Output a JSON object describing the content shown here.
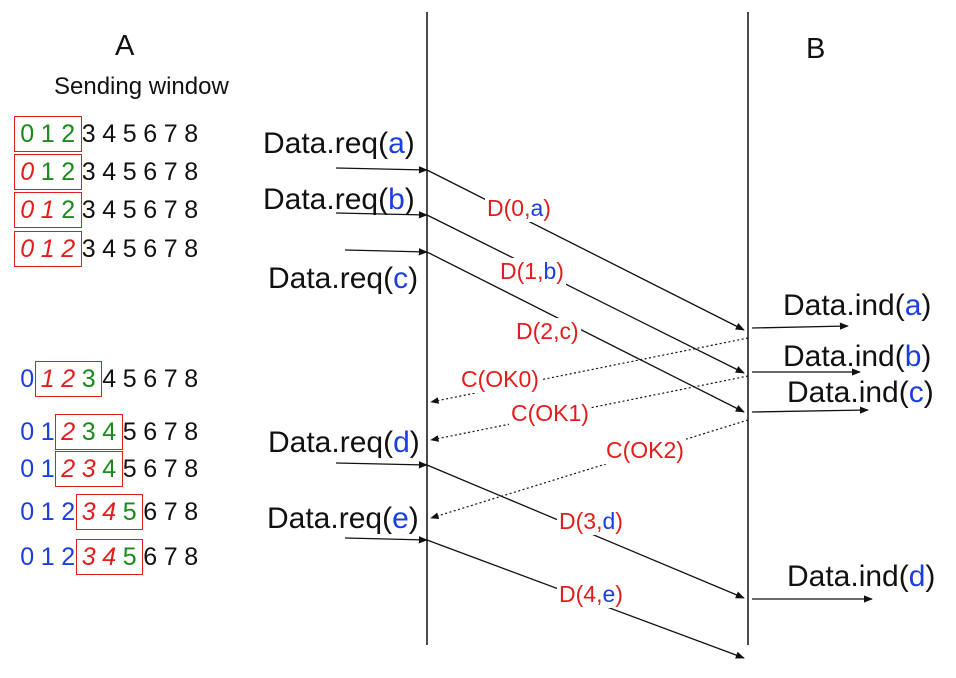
{
  "nodes": {
    "a_label": "A",
    "b_label": "B",
    "sending_window": "Sending window"
  },
  "colors": {
    "black": "#111111",
    "blue": "#1a3fe0",
    "green": "#1a8a1a",
    "red": "#e31c1c"
  },
  "windows": [
    {
      "digits": [
        "0",
        "1",
        "2",
        "3",
        "4",
        "5",
        "6",
        "7",
        "8"
      ],
      "styles": [
        "g",
        "g",
        "g",
        "k",
        "k",
        "k",
        "k",
        "k",
        "k"
      ],
      "box": [
        0,
        2
      ]
    },
    {
      "digits": [
        "0",
        "1",
        "2",
        "3",
        "4",
        "5",
        "6",
        "7",
        "8"
      ],
      "styles": [
        "ri",
        "g",
        "g",
        "k",
        "k",
        "k",
        "k",
        "k",
        "k"
      ],
      "box": [
        0,
        2
      ]
    },
    {
      "digits": [
        "0",
        "1",
        "2",
        "3",
        "4",
        "5",
        "6",
        "7",
        "8"
      ],
      "styles": [
        "ri",
        "ri",
        "g",
        "k",
        "k",
        "k",
        "k",
        "k",
        "k"
      ],
      "box": [
        0,
        2
      ]
    },
    {
      "digits": [
        "0",
        "1",
        "2",
        "3",
        "4",
        "5",
        "6",
        "7",
        "8"
      ],
      "styles": [
        "ri",
        "ri",
        "ri",
        "k",
        "k",
        "k",
        "k",
        "k",
        "k"
      ],
      "box": [
        0,
        2
      ]
    },
    {
      "digits": [
        "0",
        "1",
        "2",
        "3",
        "4",
        "5",
        "6",
        "7",
        "8"
      ],
      "styles": [
        "b",
        "ri",
        "ri",
        "g",
        "k",
        "k",
        "k",
        "k",
        "k"
      ],
      "box": [
        1,
        3
      ]
    },
    {
      "digits": [
        "0",
        "1",
        "2",
        "3",
        "4",
        "5",
        "6",
        "7",
        "8"
      ],
      "styles": [
        "b",
        "b",
        "ri",
        "g",
        "g",
        "k",
        "k",
        "k",
        "k"
      ],
      "box": [
        2,
        4
      ]
    },
    {
      "digits": [
        "0",
        "1",
        "2",
        "3",
        "4",
        "5",
        "6",
        "7",
        "8"
      ],
      "styles": [
        "b",
        "b",
        "ri",
        "ri",
        "g",
        "k",
        "k",
        "k",
        "k"
      ],
      "box": [
        2,
        4
      ]
    },
    {
      "digits": [
        "0",
        "1",
        "2",
        "3",
        "4",
        "5",
        "6",
        "7",
        "8"
      ],
      "styles": [
        "b",
        "b",
        "b",
        "ri",
        "ri",
        "g",
        "k",
        "k",
        "k"
      ],
      "box": [
        3,
        5
      ]
    },
    {
      "digits": [
        "0",
        "1",
        "2",
        "3",
        "4",
        "5",
        "6",
        "7",
        "8"
      ],
      "styles": [
        "b",
        "b",
        "b",
        "ri",
        "ri",
        "g",
        "k",
        "k",
        "k"
      ],
      "box": [
        3,
        5
      ]
    }
  ],
  "requests": [
    {
      "prefix": "Data.req(",
      "arg": "a",
      "suffix": ")"
    },
    {
      "prefix": "Data.req(",
      "arg": "b",
      "suffix": ")"
    },
    {
      "prefix": "Data.req(",
      "arg": "c",
      "suffix": ")"
    },
    {
      "prefix": "Data.req(",
      "arg": "d",
      "suffix": ")"
    },
    {
      "prefix": "Data.req(",
      "arg": "e",
      "suffix": ")"
    }
  ],
  "indications": [
    {
      "prefix": "Data.ind(",
      "arg": "a",
      "suffix": ")"
    },
    {
      "prefix": "Data.ind(",
      "arg": "b",
      "suffix": ")"
    },
    {
      "prefix": "Data.ind(",
      "arg": "c",
      "suffix": ")"
    },
    {
      "prefix": "Data.ind(",
      "arg": "d",
      "suffix": ")"
    }
  ],
  "data_frames": [
    {
      "prefix": "D(",
      "seq": "0",
      "sep": ",",
      "payload": "a",
      "suffix": ")"
    },
    {
      "prefix": "D(",
      "seq": "1",
      "sep": ",",
      "payload": "b",
      "suffix": ")"
    },
    {
      "prefix": "D(",
      "seq": "2",
      "sep": ",",
      "payload": "c",
      "suffix": ")"
    },
    {
      "prefix": "D(",
      "seq": "3",
      "sep": ",",
      "payload": "d",
      "suffix": ")"
    },
    {
      "prefix": "D(",
      "seq": "4",
      "sep": ",",
      "payload": "e",
      "suffix": ")"
    }
  ],
  "acks": [
    "C(OK0)",
    "C(OK1)",
    "C(OK2)"
  ]
}
